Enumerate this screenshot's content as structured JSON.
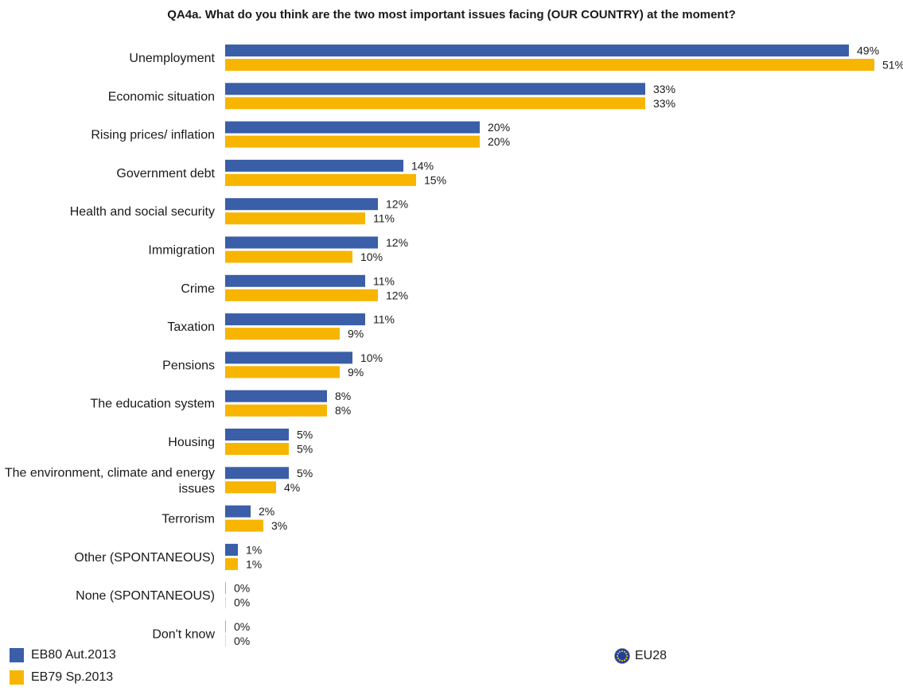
{
  "chart_data": {
    "type": "bar",
    "orientation": "horizontal",
    "title": "QA4a. What do you think are the two most important issues facing (OUR COUNTRY) at the moment?",
    "categories": [
      "Unemployment",
      "Economic situation",
      "Rising prices/ inflation",
      "Government debt",
      "Health and social security",
      "Immigration",
      "Crime",
      "Taxation",
      "Pensions",
      "The education system",
      "Housing",
      "The environment, climate and energy issues",
      "Terrorism",
      "Other (SPONTANEOUS)",
      "None (SPONTANEOUS)",
      "Don't know"
    ],
    "category_lines": [
      [
        "Unemployment"
      ],
      [
        "Economic situation"
      ],
      [
        "Rising prices/ inflation"
      ],
      [
        "Government debt"
      ],
      [
        "Health and social security"
      ],
      [
        "Immigration"
      ],
      [
        "Crime"
      ],
      [
        "Taxation"
      ],
      [
        "Pensions"
      ],
      [
        "The education system"
      ],
      [
        "Housing"
      ],
      [
        "The environment, climate and energy",
        "issues"
      ],
      [
        "Terrorism"
      ],
      [
        "Other (SPONTANEOUS)"
      ],
      [
        "None (SPONTANEOUS)"
      ],
      [
        "Don't know"
      ]
    ],
    "series": [
      {
        "name": "EB80 Aut.2013",
        "color": "#3a5ea8",
        "values": [
          49,
          33,
          20,
          14,
          12,
          12,
          11,
          11,
          10,
          8,
          5,
          5,
          2,
          1,
          0,
          0
        ]
      },
      {
        "name": "EB79 Sp.2013",
        "color": "#f7b500",
        "values": [
          51,
          33,
          20,
          15,
          11,
          10,
          12,
          9,
          9,
          8,
          5,
          4,
          3,
          1,
          0,
          0
        ]
      }
    ],
    "value_suffix": "%",
    "xlim": [
      0,
      51
    ],
    "grid": false,
    "legend": {
      "placement": "bottom-left",
      "region_label": "EU28",
      "region_icon": "eu-flag-icon"
    }
  }
}
